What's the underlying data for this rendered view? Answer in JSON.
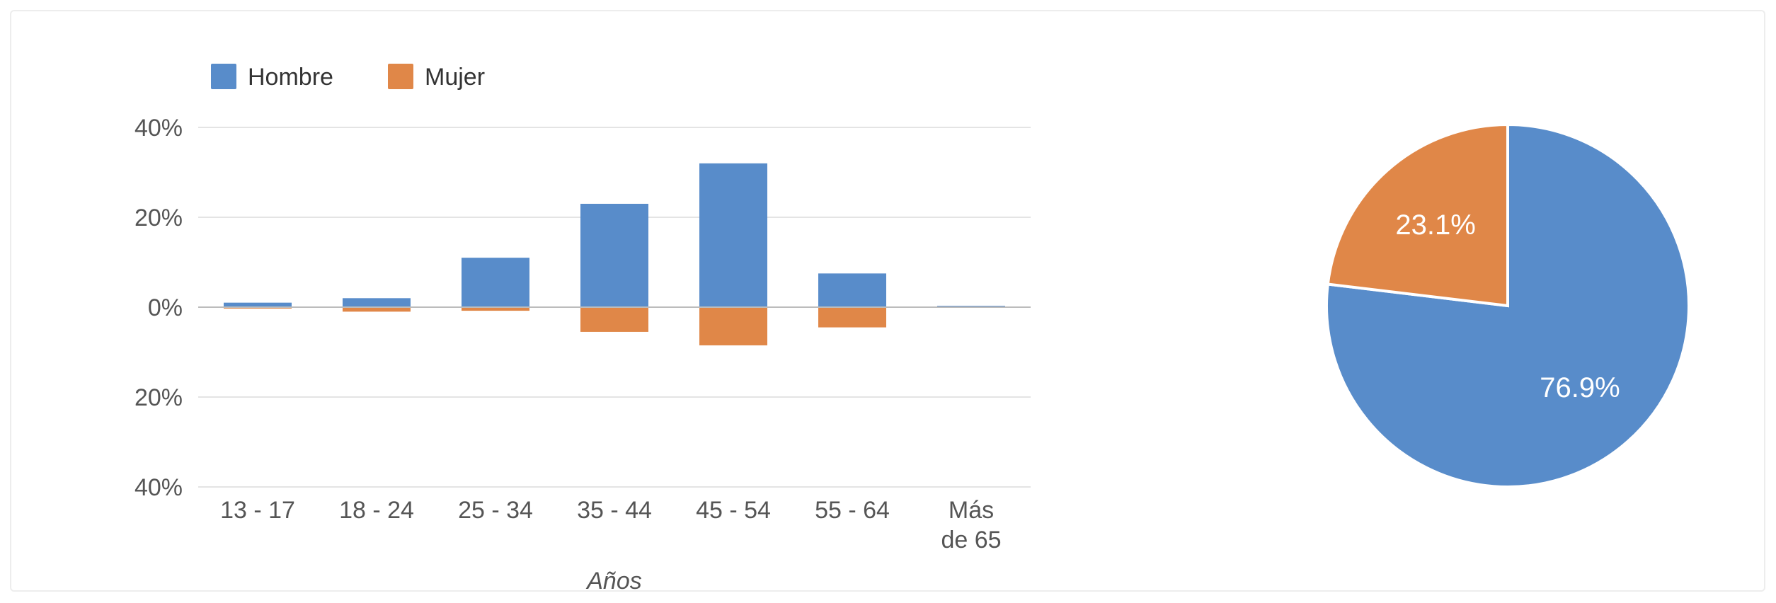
{
  "chart_data": [
    {
      "type": "bar",
      "stacked": "diverging",
      "legend_position": "top-left",
      "grid": true,
      "xlabel": "Años",
      "ylabel": "",
      "ylim": [
        -40,
        40
      ],
      "y_tick_labels": [
        "40%",
        "20%",
        "0%",
        "20%",
        "40%"
      ],
      "categories": [
        [
          "13 - 17"
        ],
        [
          "18 - 24"
        ],
        [
          "25 - 34"
        ],
        [
          "35 - 44"
        ],
        [
          "45 - 54"
        ],
        [
          "55 - 64"
        ],
        [
          "Más",
          "de 65"
        ]
      ],
      "series": [
        {
          "name": "Hombre",
          "color": "#588cca",
          "values": [
            1.0,
            2.0,
            11.0,
            23.0,
            32.0,
            7.5,
            0.3
          ]
        },
        {
          "name": "Mujer",
          "color": "#e08748",
          "values": [
            -0.2,
            -1.0,
            -0.8,
            -5.5,
            -8.5,
            -4.5,
            0.0
          ]
        }
      ]
    },
    {
      "type": "pie",
      "slices": [
        {
          "label": "76.9%",
          "value": 76.9,
          "color": "#588cca"
        },
        {
          "label": "23.1%",
          "value": 23.1,
          "color": "#e08748"
        }
      ]
    }
  ]
}
